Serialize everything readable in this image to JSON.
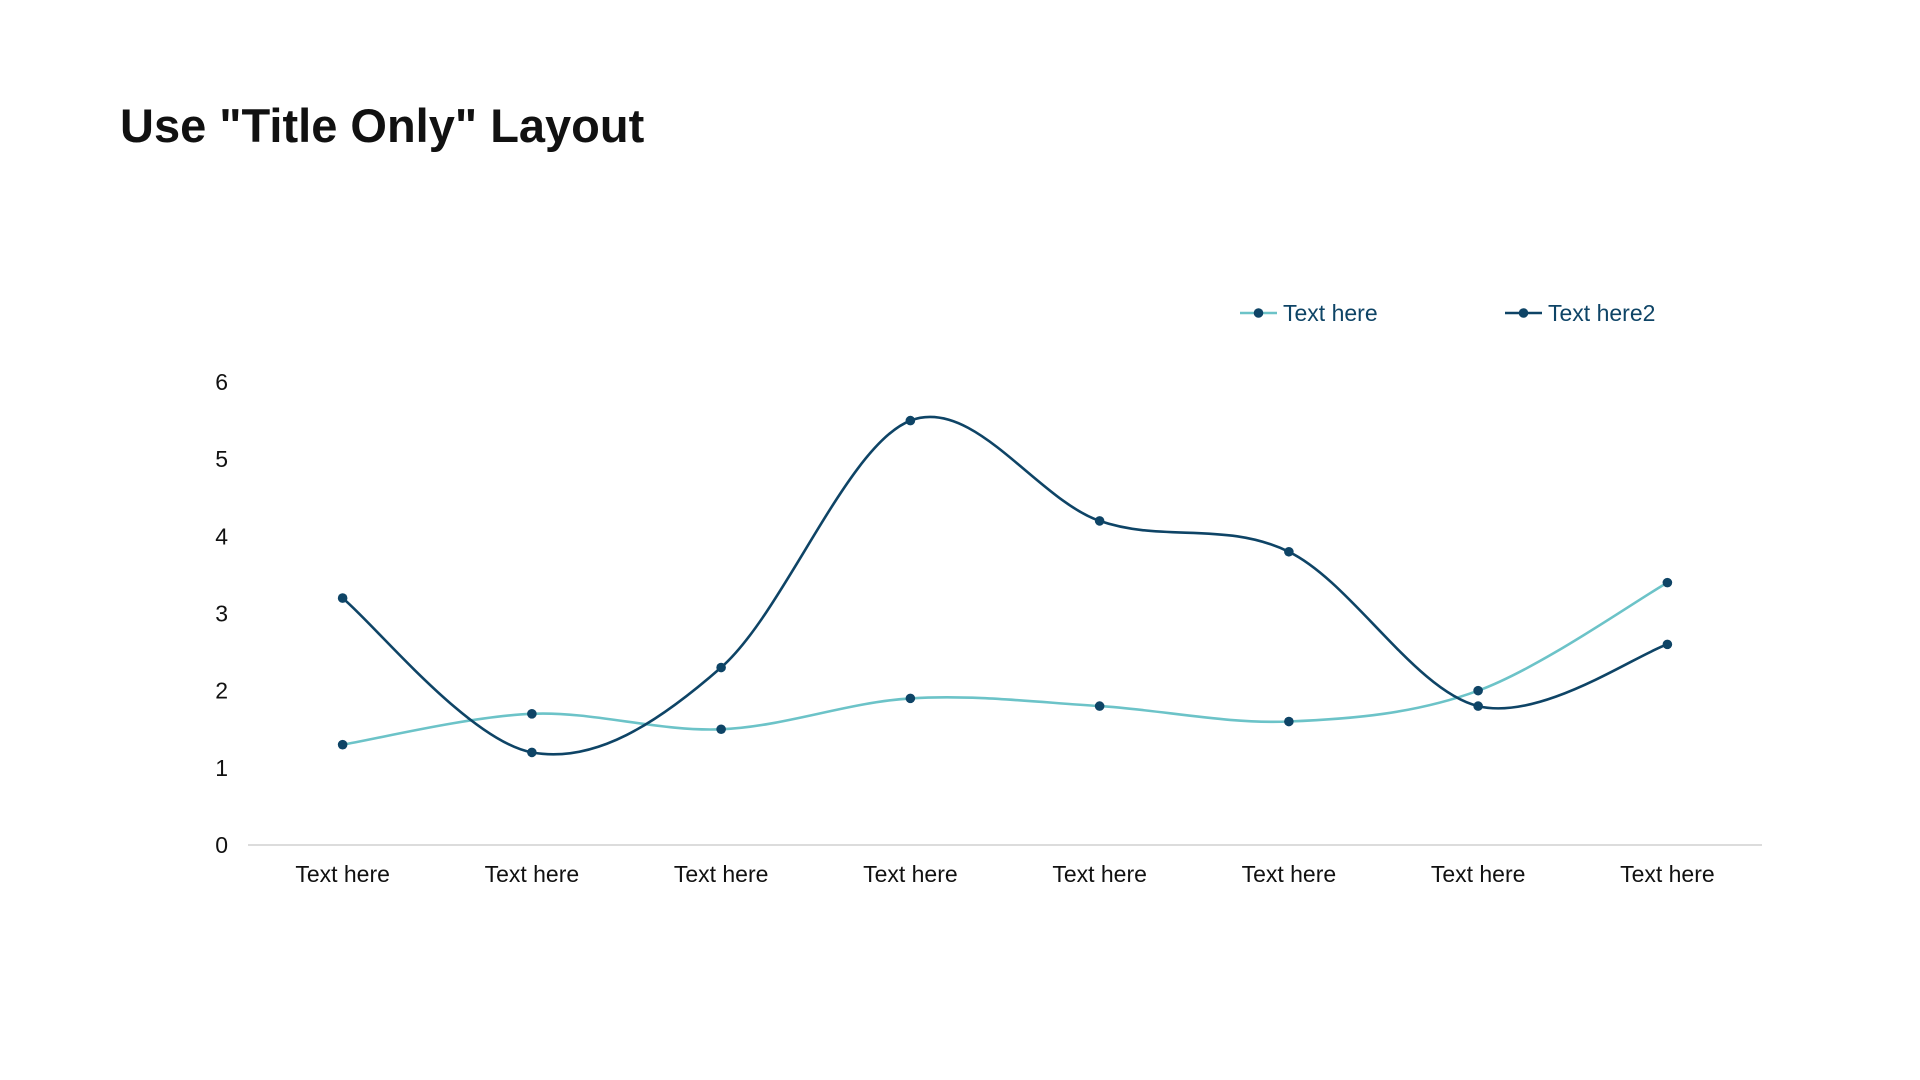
{
  "slide": {
    "title": "Use \"Title Only\" Layout"
  },
  "chart_data": {
    "type": "line",
    "title": "",
    "xlabel": "",
    "ylabel": "",
    "categories": [
      "Text here",
      "Text here",
      "Text here",
      "Text here",
      "Text here",
      "Text here",
      "Text here",
      "Text here"
    ],
    "ylim": [
      0,
      6
    ],
    "yticks": [
      0,
      1,
      2,
      3,
      4,
      5,
      6
    ],
    "grid": false,
    "smooth": true,
    "legend": "top-right",
    "series": [
      {
        "name": "Text here",
        "color": "#6CC3C8",
        "values": [
          1.3,
          1.7,
          1.5,
          1.9,
          1.8,
          1.6,
          2.0,
          3.4
        ]
      },
      {
        "name": "Text here2",
        "color": "#0E4466",
        "values": [
          3.2,
          1.2,
          2.3,
          5.5,
          4.2,
          3.8,
          1.8,
          2.6
        ]
      }
    ],
    "marker_color": "#0E4466",
    "axis_color": "#D0D0D0",
    "legend_text_color": "#0E4466"
  }
}
